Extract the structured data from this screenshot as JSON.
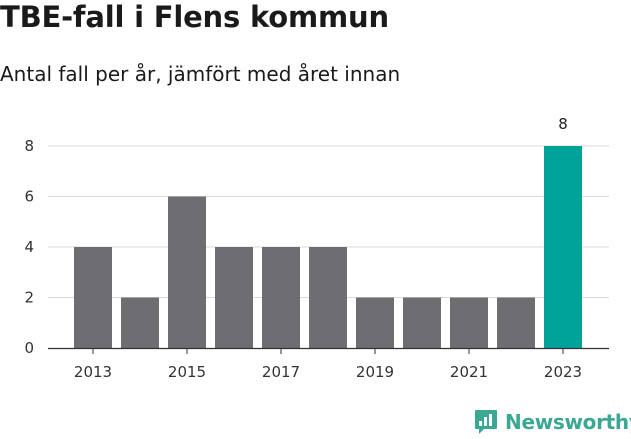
{
  "header": {
    "title": "TBE-fall i Flens kommun",
    "subtitle": "Antal fall per år, jämfört med året innan"
  },
  "brand": {
    "name": "Newsworthy",
    "color": "#3aa892"
  },
  "chart_data": {
    "type": "bar",
    "categories": [
      "2013",
      "2014",
      "2015",
      "2016",
      "2017",
      "2018",
      "2019",
      "2020",
      "2021",
      "2022",
      "2023"
    ],
    "values": [
      4,
      2,
      6,
      4,
      4,
      4,
      2,
      2,
      2,
      2,
      8
    ],
    "x_tick_labels": [
      "2013",
      "2015",
      "2017",
      "2019",
      "2021",
      "2023"
    ],
    "y_ticks": [
      0,
      2,
      4,
      6,
      8
    ],
    "ylim": [
      0,
      8
    ],
    "xlabel": "",
    "ylabel": "",
    "grid": true,
    "data_labels": [
      {
        "category": "2023",
        "text": "8"
      }
    ],
    "colors": {
      "bar": "#6e6d72",
      "highlight": "#00a39a",
      "grid": "#d9d9d9",
      "axis": "#333333"
    },
    "highlight_category": "2023"
  }
}
